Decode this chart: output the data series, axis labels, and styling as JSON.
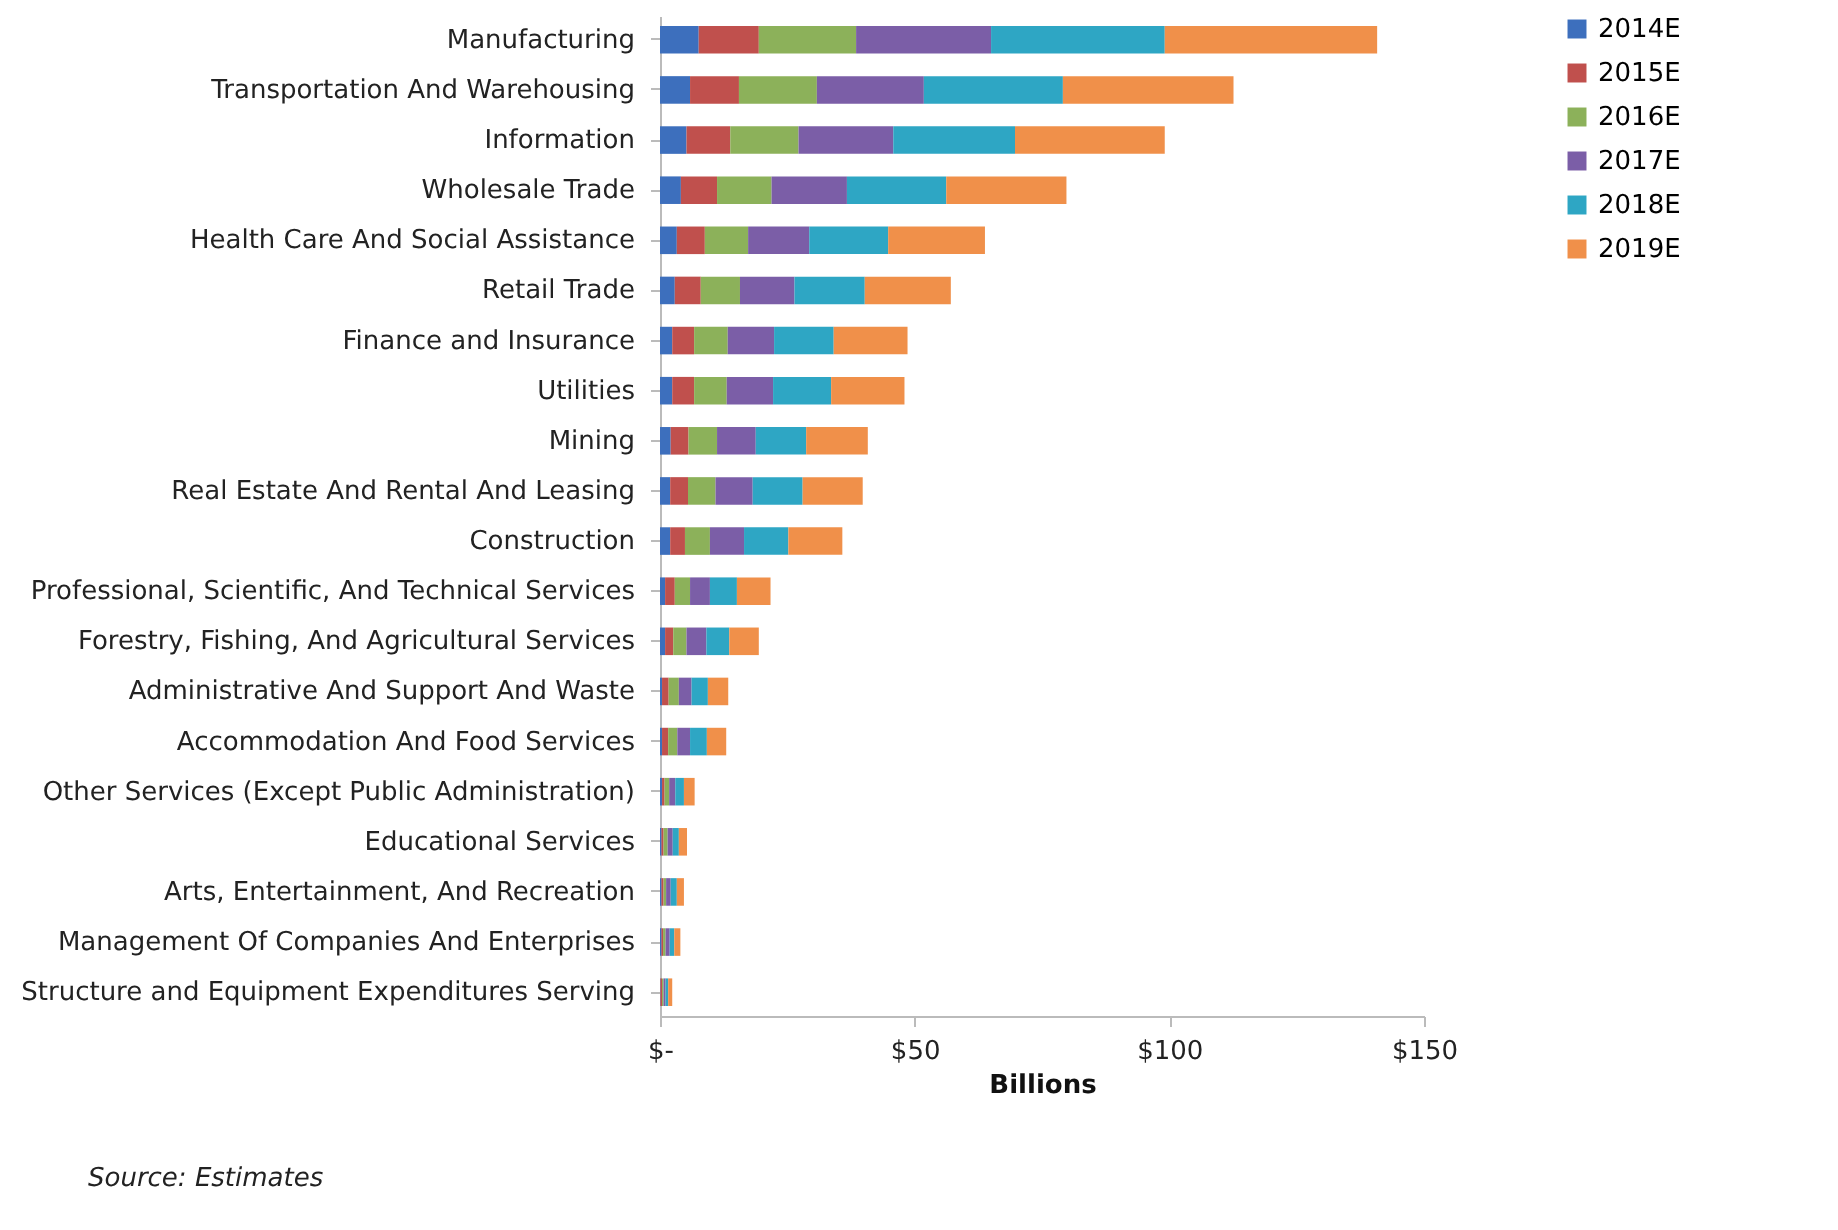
{
  "chart_data": {
    "type": "bar",
    "orientation": "horizontal",
    "stacked": true,
    "xlabel": "Billions",
    "categories": [
      "Manufacturing",
      "Transportation And Warehousing",
      "Information",
      "Wholesale Trade",
      "Health Care And Social Assistance",
      "Retail Trade",
      "Finance and Insurance",
      "Utilities",
      "Mining",
      "Real Estate And Rental And Leasing",
      "Construction",
      "Professional, Scientific, And Technical Services",
      "Forestry, Fishing, And Agricultural Services",
      "Administrative And Support And Waste",
      "Accommodation And Food Services",
      "Other Services (Except Public Administration)",
      "Educational Services",
      "Arts, Entertainment, And Recreation",
      "Management Of Companies And Enterprises",
      "Structure and Equipment Expenditures Serving"
    ],
    "series": [
      {
        "name": "2014E",
        "color": "#3d6fbd",
        "values": [
          7.6,
          5.9,
          5.2,
          4.1,
          3.3,
          2.9,
          2.4,
          2.4,
          2.1,
          2,
          2,
          1,
          1,
          0.4,
          0.4,
          0.4,
          0.3,
          0.3,
          0.3,
          0.1
        ]
      },
      {
        "name": "2015E",
        "color": "#c0504d",
        "values": [
          11.8,
          9.6,
          8.6,
          7.1,
          5.5,
          5.1,
          4.3,
          4.3,
          3.5,
          3.5,
          2.9,
          1.9,
          1.6,
          1.3,
          1.2,
          0.5,
          0.4,
          0.4,
          0.3,
          0.3
        ]
      },
      {
        "name": "2016E",
        "color": "#8cb15a",
        "values": [
          19.1,
          15.3,
          13.4,
          10.7,
          8.5,
          7.7,
          6.6,
          6.4,
          5.6,
          5.4,
          4.9,
          3,
          2.6,
          2,
          1.8,
          0.9,
          0.8,
          0.5,
          0.5,
          0.3
        ]
      },
      {
        "name": "2017E",
        "color": "#7b5ea7",
        "values": [
          26.5,
          21,
          18.6,
          14.8,
          12,
          10.7,
          9.1,
          9.1,
          7.6,
          7.3,
          6.7,
          3.9,
          3.9,
          2.5,
          2.5,
          1.2,
          1,
          0.9,
          0.8,
          0.4
        ]
      },
      {
        "name": "2018E",
        "color": "#2ea6c4",
        "values": [
          34.1,
          27.3,
          23.9,
          19.5,
          15.5,
          13.8,
          11.7,
          11.4,
          9.9,
          9.8,
          8.7,
          5.3,
          4.5,
          3.2,
          3.3,
          1.7,
          1.2,
          1.2,
          0.9,
          0.5
        ]
      },
      {
        "name": "2019E",
        "color": "#f0904a",
        "values": [
          41.7,
          33.5,
          29.4,
          23.6,
          19,
          16.9,
          14.5,
          14.4,
          12.1,
          11.8,
          10.6,
          6.6,
          5.8,
          4,
          3.8,
          2.1,
          1.6,
          1.4,
          1.2,
          0.8
        ]
      }
    ],
    "xlim": [
      0,
      150
    ],
    "xticks": [
      {
        "value": 0,
        "label": "$-"
      },
      {
        "value": 50,
        "label": "$50"
      },
      {
        "value": 100,
        "label": "$100"
      },
      {
        "value": 150,
        "label": "$150"
      }
    ],
    "grid": false,
    "legend": "right",
    "annotations": [
      "Source: Estimates"
    ]
  }
}
